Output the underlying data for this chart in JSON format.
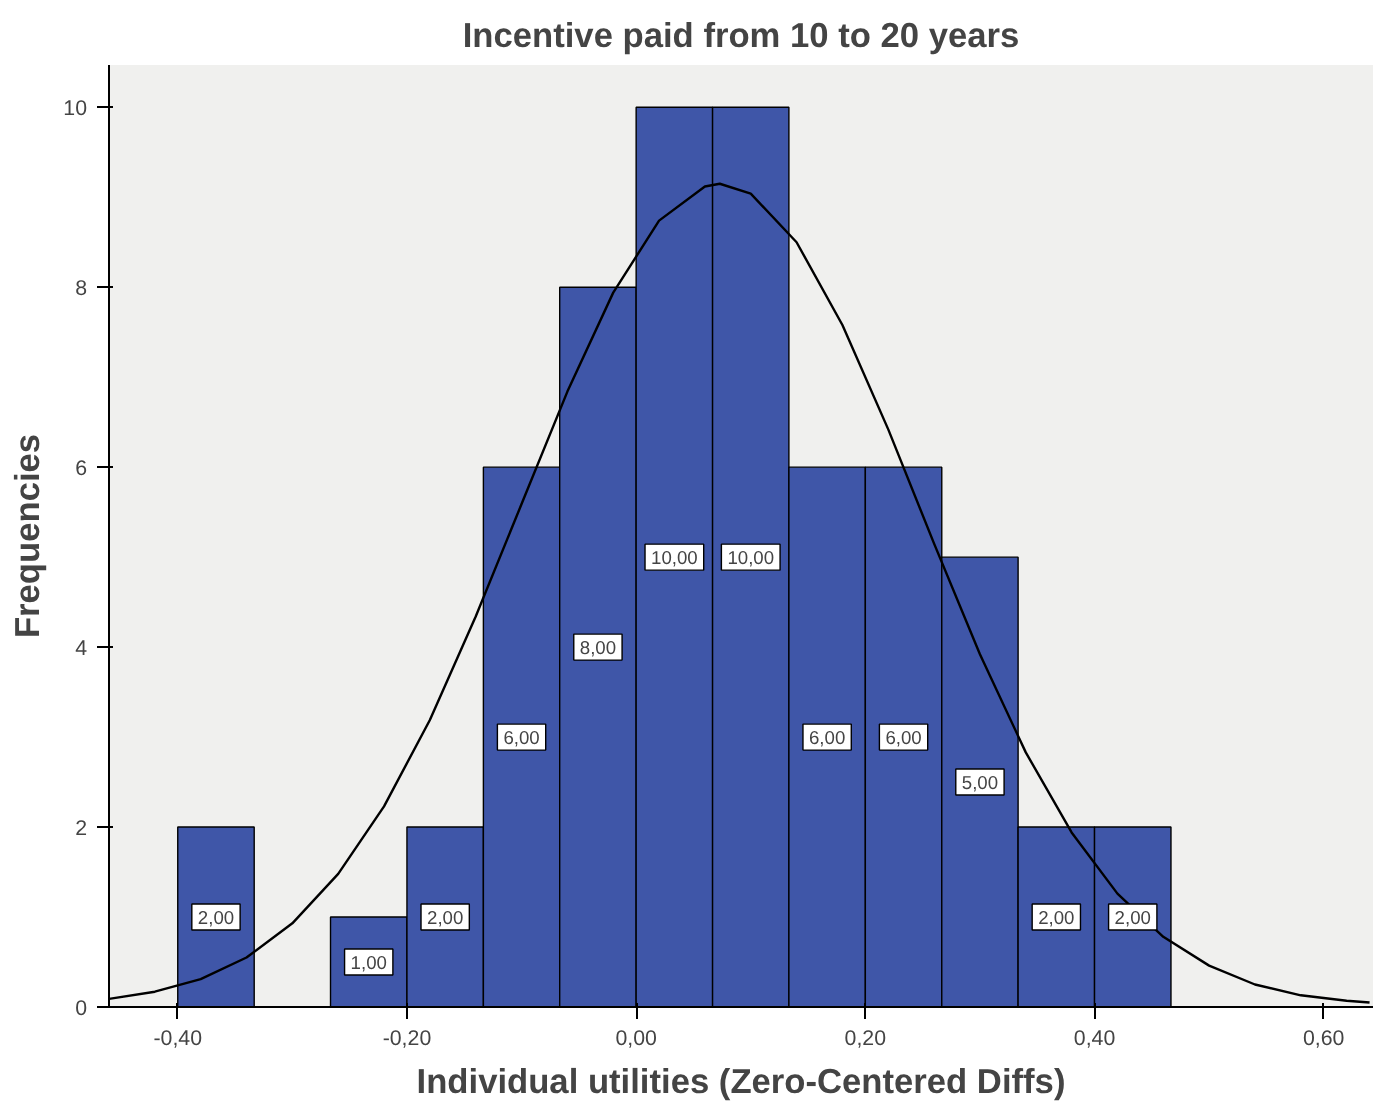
{
  "chart_data": {
    "type": "histogram",
    "title": "Incentive paid from 10 to 20 years",
    "xlabel": "Individual utilities (Zero-Centered Diffs)",
    "ylabel": "Frequencies",
    "xlim": [
      -0.46,
      0.643
    ],
    "ylim": [
      0,
      10.47
    ],
    "xticks": [
      {
        "value": -0.4,
        "label": "-0,40"
      },
      {
        "value": -0.2,
        "label": "-0,20"
      },
      {
        "value": 0.0,
        "label": "0,00"
      },
      {
        "value": 0.2,
        "label": "0,20"
      },
      {
        "value": 0.4,
        "label": "0,40"
      },
      {
        "value": 0.6,
        "label": "0,60"
      }
    ],
    "yticks": [
      0,
      2,
      4,
      6,
      8,
      10
    ],
    "grid": false,
    "series": [
      {
        "color": "#3f56a8",
        "bins": [
          -0.4,
          -0.3333,
          -0.2667,
          -0.2,
          -0.1333,
          -0.0667,
          0.0,
          0.0667,
          0.1333,
          0.2,
          0.2667,
          0.3333,
          0.4,
          0.4667
        ],
        "values": [
          2,
          0,
          1,
          2,
          6,
          8,
          10,
          10,
          6,
          6,
          5,
          2,
          2
        ],
        "value_labels": [
          "2,00",
          null,
          "1,00",
          "2,00",
          "6,00",
          "8,00",
          "10,00",
          "10,00",
          "6,00",
          "6,00",
          "5,00",
          "2,00",
          "2,00"
        ]
      },
      {
        "type": "line",
        "color": "#000000",
        "line_style": "solid",
        "x": [
          -0.46,
          -0.42,
          -0.38,
          -0.34,
          -0.3,
          -0.26,
          -0.22,
          -0.18,
          -0.14,
          -0.1,
          -0.06,
          -0.02,
          0.02,
          0.06,
          0.073,
          0.1,
          0.14,
          0.18,
          0.22,
          0.26,
          0.3,
          0.34,
          0.38,
          0.42,
          0.46,
          0.5,
          0.54,
          0.58,
          0.62,
          0.64
        ],
        "values": [
          0.09,
          0.17,
          0.31,
          0.55,
          0.93,
          1.48,
          2.23,
          3.19,
          4.34,
          5.59,
          6.84,
          7.94,
          8.74,
          9.12,
          9.15,
          9.04,
          8.5,
          7.58,
          6.42,
          5.15,
          3.92,
          2.83,
          1.94,
          1.26,
          0.78,
          0.46,
          0.25,
          0.13,
          0.07,
          0.05
        ]
      }
    ]
  }
}
